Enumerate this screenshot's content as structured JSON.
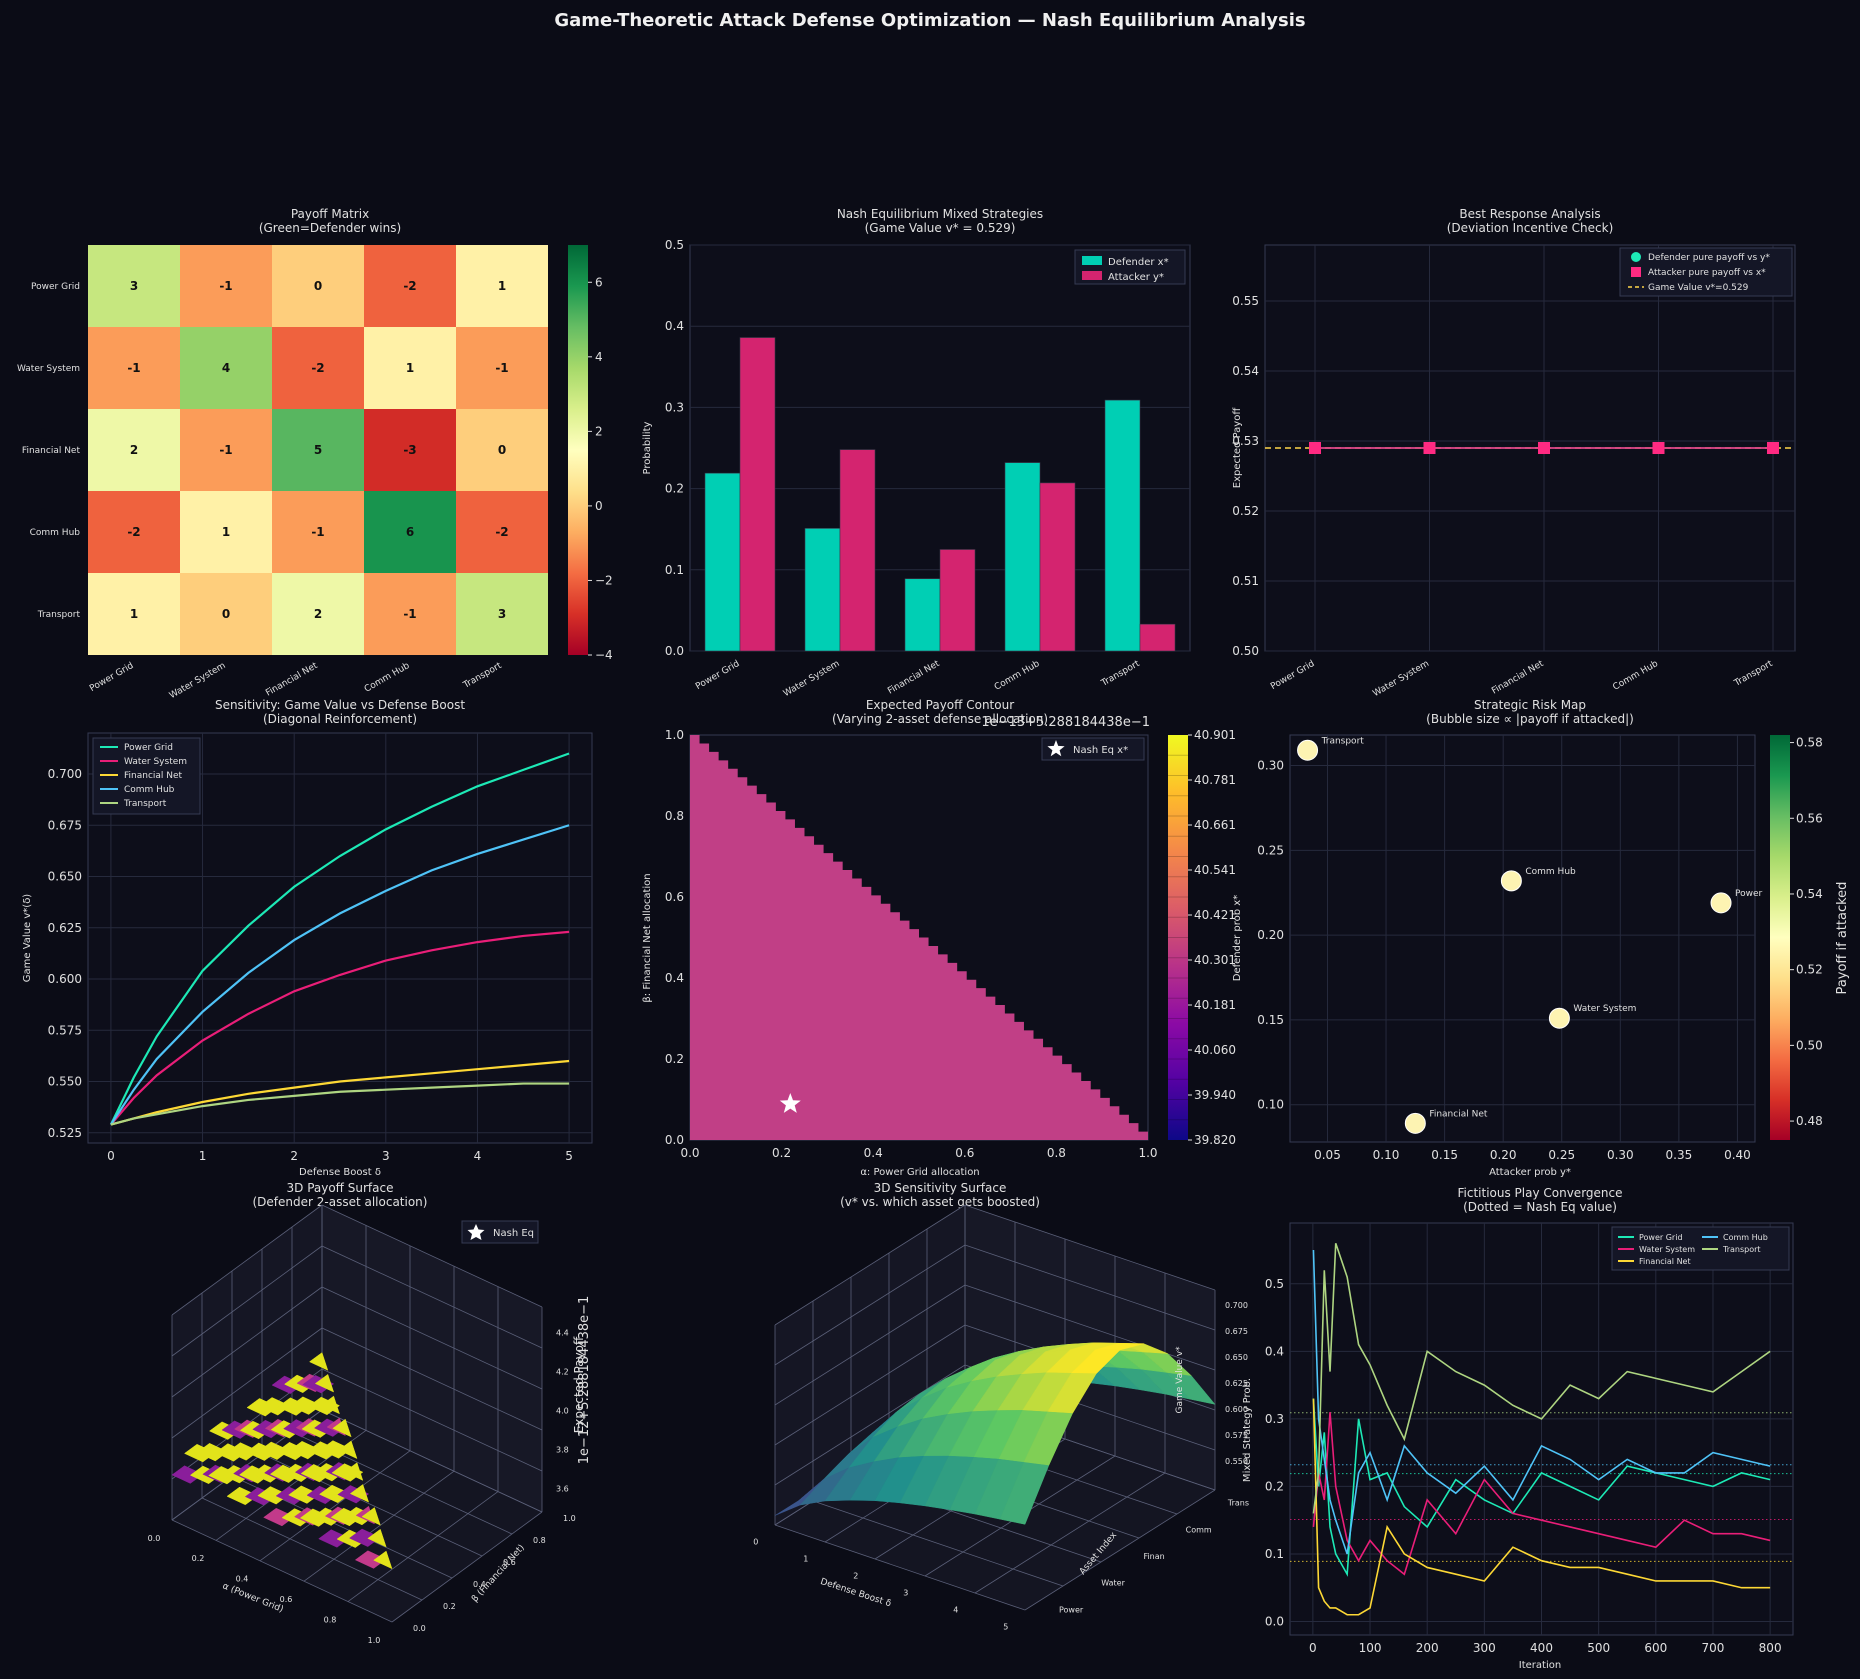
{
  "suptitle": "Game-Theoretic Attack Defense Optimization — Nash Equilibrium Analysis",
  "assets": [
    "Power Grid",
    "Water System",
    "Financial Net",
    "Comm Hub",
    "Transport"
  ],
  "colors": {
    "background": "#0b0c16",
    "axes_bg": "#0d0e1a",
    "defender": "#00cfb4",
    "attacker": "#d4246f",
    "game_value_line": "#ffd54a",
    "series": [
      "#1de9b6",
      "#e91e78",
      "#fdd835",
      "#4fc3f7",
      "#aed581"
    ]
  },
  "chart_data": [
    {
      "id": "payoff_matrix",
      "type": "heatmap",
      "title": "Payoff Matrix\n(Green=Defender wins)",
      "rows": [
        "Power Grid",
        "Water System",
        "Financial Net",
        "Comm Hub",
        "Transport"
      ],
      "cols": [
        "Power Grid",
        "Water System",
        "Financial Net",
        "Comm Hub",
        "Transport"
      ],
      "values": [
        [
          3,
          -1,
          0,
          -2,
          1
        ],
        [
          -1,
          4,
          -2,
          1,
          -1
        ],
        [
          2,
          -1,
          5,
          -3,
          0
        ],
        [
          -2,
          1,
          -1,
          6,
          -2
        ],
        [
          1,
          0,
          2,
          -1,
          3
        ]
      ],
      "colorbar_ticks": [
        "−4",
        "−2",
        "0",
        "2",
        "4",
        "6"
      ],
      "vmin": -4,
      "vmax": 7,
      "colormap": "RdYlGn"
    },
    {
      "id": "nash_strategies",
      "type": "bar",
      "title": "Nash Equilibrium Mixed Strategies\n(Game Value v* = 0.529)",
      "categories": [
        "Power Grid",
        "Water System",
        "Financial Net",
        "Comm Hub",
        "Transport"
      ],
      "series": [
        {
          "name": "Defender x*",
          "values": [
            0.219,
            0.151,
            0.089,
            0.232,
            0.309
          ]
        },
        {
          "name": "Attacker y*",
          "values": [
            0.386,
            0.248,
            0.125,
            0.207,
            0.033
          ]
        }
      ],
      "ylabel": "Probability",
      "ylim": [
        0,
        0.5
      ],
      "yticks": [
        "0.0",
        "0.1",
        "0.2",
        "0.3",
        "0.4",
        "0.5"
      ],
      "legend": "top-right"
    },
    {
      "id": "best_response",
      "type": "line",
      "title": "Best Response Analysis\n(Deviation Incentive Check)",
      "categories": [
        "Power Grid",
        "Water System",
        "Financial Net",
        "Comm Hub",
        "Transport"
      ],
      "series": [
        {
          "name": "Defender pure payoff vs y*",
          "values": [
            0.529,
            0.529,
            0.529,
            0.529,
            0.529
          ]
        },
        {
          "name": "Attacker pure payoff vs x*",
          "values": [
            0.529,
            0.529,
            0.529,
            0.529,
            0.529
          ]
        }
      ],
      "hline": {
        "name": "Game Value v*=0.529",
        "value": 0.529
      },
      "ylabel": "Expected Payoff",
      "ylim": [
        0.5,
        0.558
      ],
      "yticks": [
        "0.50",
        "0.51",
        "0.52",
        "0.53",
        "0.54",
        "0.55"
      ],
      "legend": "top-right"
    },
    {
      "id": "sensitivity",
      "type": "line",
      "title": "Sensitivity: Game Value vs Defense Boost\n(Diagonal Reinforcement)",
      "xlabel": "Defense Boost δ",
      "ylabel": "Game Value v*(δ)",
      "xlim": [
        -0.25,
        5.25
      ],
      "ylim": [
        0.52,
        0.72
      ],
      "xticks": [
        "0",
        "1",
        "2",
        "3",
        "4",
        "5"
      ],
      "yticks": [
        "0.525",
        "0.550",
        "0.575",
        "0.600",
        "0.625",
        "0.650",
        "0.675",
        "0.700"
      ],
      "x": [
        0,
        0.25,
        0.5,
        1,
        1.5,
        2,
        2.5,
        3,
        3.5,
        4,
        4.5,
        5
      ],
      "series": [
        {
          "name": "Power Grid",
          "values": [
            0.529,
            0.552,
            0.572,
            0.604,
            0.626,
            0.645,
            0.66,
            0.673,
            0.684,
            0.694,
            0.702,
            0.71
          ]
        },
        {
          "name": "Water System",
          "values": [
            0.529,
            0.542,
            0.553,
            0.57,
            0.583,
            0.594,
            0.602,
            0.609,
            0.614,
            0.618,
            0.621,
            0.623
          ]
        },
        {
          "name": "Financial Net",
          "values": [
            0.529,
            0.532,
            0.535,
            0.54,
            0.544,
            0.547,
            0.55,
            0.552,
            0.554,
            0.556,
            0.558,
            0.56
          ]
        },
        {
          "name": "Comm Hub",
          "values": [
            0.529,
            0.546,
            0.561,
            0.584,
            0.603,
            0.619,
            0.632,
            0.643,
            0.653,
            0.661,
            0.668,
            0.675
          ]
        },
        {
          "name": "Transport",
          "values": [
            0.529,
            0.532,
            0.534,
            0.538,
            0.541,
            0.543,
            0.545,
            0.546,
            0.547,
            0.548,
            0.549,
            0.549
          ]
        }
      ],
      "legend": "top-left"
    },
    {
      "id": "payoff_contour",
      "type": "area",
      "title": "Expected Payoff Contour\n(Varying 2-asset defense allocation)",
      "xlabel": "α: Power Grid allocation",
      "ylabel": "β: Financial Net allocation",
      "xlim": [
        0,
        1
      ],
      "ylim": [
        0,
        1
      ],
      "xticks": [
        "0.0",
        "0.2",
        "0.4",
        "0.6",
        "0.8",
        "1.0"
      ],
      "yticks": [
        "0.0",
        "0.2",
        "0.4",
        "0.6",
        "0.8",
        "1.0"
      ],
      "offset_label": "1e−13+5.288184438e−1",
      "colorbar_ticks": [
        "39.820",
        "39.940",
        "40.060",
        "40.181",
        "40.301",
        "40.421",
        "40.541",
        "40.661",
        "40.781",
        "40.901"
      ],
      "marker": {
        "name": "Nash Eq x*",
        "x": 0.219,
        "y": 0.089
      },
      "legend": "top-right"
    },
    {
      "id": "risk_map",
      "type": "scatter",
      "title": "Strategic Risk Map\n(Bubble size ∝ |payoff if attacked|)",
      "xlabel": "Attacker prob y*",
      "ylabel": "Defender prob x*",
      "xlim": [
        0.018,
        0.415
      ],
      "ylim": [
        0.078,
        0.318
      ],
      "xticks": [
        "0.05",
        "0.10",
        "0.15",
        "0.20",
        "0.25",
        "0.30",
        "0.35",
        "0.40"
      ],
      "yticks": [
        "0.10",
        "0.15",
        "0.20",
        "0.25",
        "0.30"
      ],
      "points": [
        {
          "label": "Power",
          "x": 0.386,
          "y": 0.219
        },
        {
          "label": "Water System",
          "x": 0.248,
          "y": 0.151
        },
        {
          "label": "Financial Net",
          "x": 0.125,
          "y": 0.089
        },
        {
          "label": "Comm Hub",
          "x": 0.207,
          "y": 0.232
        },
        {
          "label": "Transport",
          "x": 0.033,
          "y": 0.309
        }
      ],
      "colorbar_label": "Payoff if attacked",
      "colorbar_ticks": [
        "0.48",
        "0.50",
        "0.52",
        "0.54",
        "0.56",
        "0.58"
      ]
    },
    {
      "id": "surface_3d_payoff",
      "type": "area",
      "title": "3D Payoff Surface\n(Defender 2-asset allocation)",
      "xlabel": "α (Power Grid)",
      "ylabel": "β (Financial Net)",
      "zlabel": "Expected Payoff",
      "xticks": [
        "0.0",
        "0.2",
        "0.4",
        "0.6",
        "0.8",
        "1.0"
      ],
      "yticks": [
        "0.0",
        "0.2",
        "0.4",
        "0.6",
        "0.8",
        "1.0"
      ],
      "zticks": [
        "3.6",
        "3.8",
        "4.0",
        "4.2",
        "4.4"
      ],
      "offset_label": "1e−12+5.288184438e−1",
      "legend_entry": "Nash Eq"
    },
    {
      "id": "surface_3d_sensitivity",
      "type": "area",
      "title": "3D Sensitivity Surface\n(v* vs. which asset gets boosted)",
      "xlabel": "Defense Boost δ",
      "ylabel": "Asset Index",
      "zlabel": "Game Value v*",
      "xticks": [
        "0",
        "1",
        "2",
        "3",
        "4",
        "5"
      ],
      "yticks": [
        "Power",
        "Water",
        "Finan",
        "Comm",
        "Trans"
      ],
      "zticks": [
        "0.550",
        "0.575",
        "0.600",
        "0.625",
        "0.650",
        "0.675",
        "0.700"
      ]
    },
    {
      "id": "fictitious_play",
      "type": "line",
      "title": "Fictitious Play Convergence\n(Dotted = Nash Eq value)",
      "xlabel": "Iteration",
      "ylabel": "Mixed Strategy Prob.",
      "xlim": [
        -40,
        840
      ],
      "ylim": [
        -0.02,
        0.59
      ],
      "xticks": [
        "0",
        "100",
        "200",
        "300",
        "400",
        "500",
        "600",
        "700",
        "800"
      ],
      "yticks": [
        "0.0",
        "0.1",
        "0.2",
        "0.3",
        "0.4",
        "0.5"
      ],
      "x": [
        1,
        10,
        20,
        30,
        40,
        60,
        80,
        100,
        130,
        160,
        200,
        250,
        300,
        350,
        400,
        450,
        500,
        550,
        600,
        650,
        700,
        750,
        800
      ],
      "series": [
        {
          "name": "Power Grid",
          "values": [
            0.33,
            0.2,
            0.28,
            0.14,
            0.1,
            0.07,
            0.3,
            0.21,
            0.22,
            0.17,
            0.14,
            0.21,
            0.18,
            0.16,
            0.22,
            0.2,
            0.18,
            0.23,
            0.22,
            0.21,
            0.2,
            0.22,
            0.21
          ]
        },
        {
          "name": "Water System",
          "values": [
            0.14,
            0.22,
            0.18,
            0.31,
            0.2,
            0.12,
            0.09,
            0.12,
            0.09,
            0.07,
            0.18,
            0.13,
            0.21,
            0.16,
            0.15,
            0.14,
            0.13,
            0.12,
            0.11,
            0.15,
            0.13,
            0.13,
            0.12
          ]
        },
        {
          "name": "Financial Net",
          "values": [
            0.33,
            0.05,
            0.03,
            0.02,
            0.02,
            0.01,
            0.01,
            0.02,
            0.14,
            0.1,
            0.08,
            0.07,
            0.06,
            0.11,
            0.09,
            0.08,
            0.08,
            0.07,
            0.06,
            0.06,
            0.06,
            0.05,
            0.05
          ]
        },
        {
          "name": "Comm Hub",
          "values": [
            0.55,
            0.3,
            0.24,
            0.18,
            0.15,
            0.1,
            0.22,
            0.25,
            0.18,
            0.26,
            0.22,
            0.19,
            0.23,
            0.18,
            0.26,
            0.24,
            0.21,
            0.24,
            0.22,
            0.22,
            0.25,
            0.24,
            0.23
          ]
        },
        {
          "name": "Transport",
          "values": [
            0.16,
            0.22,
            0.52,
            0.37,
            0.56,
            0.51,
            0.41,
            0.38,
            0.32,
            0.27,
            0.4,
            0.37,
            0.35,
            0.32,
            0.3,
            0.35,
            0.33,
            0.37,
            0.36,
            0.35,
            0.34,
            0.37,
            0.4
          ]
        }
      ],
      "nash_values": [
        0.219,
        0.151,
        0.089,
        0.232,
        0.309
      ],
      "legend": "top-right"
    }
  ]
}
